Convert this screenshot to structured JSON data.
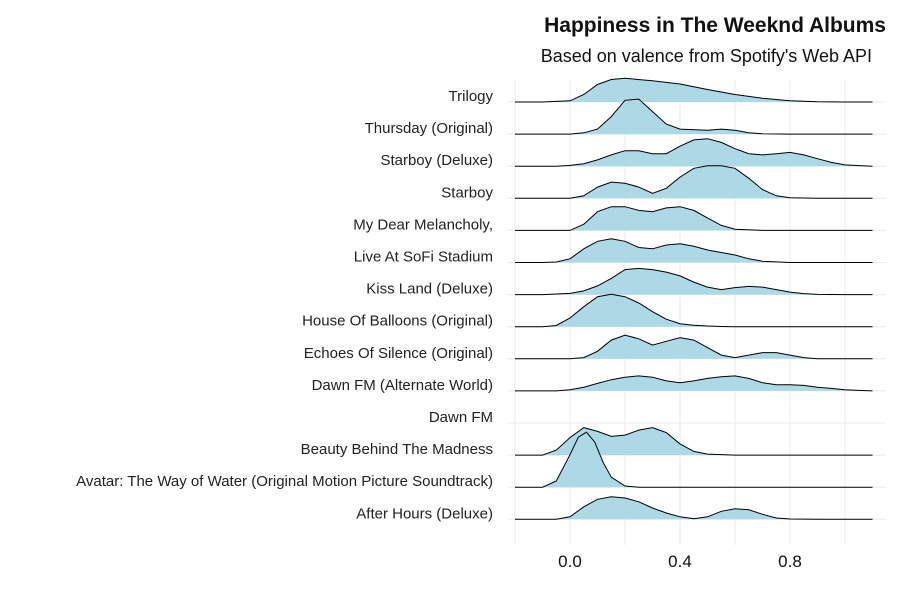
{
  "chart_data": {
    "type": "ridgeline",
    "title": "Happiness in The Weeknd Albums",
    "subtitle": "Based on valence from Spotify's Web API",
    "xlabel": "",
    "ylabel": "",
    "xlim": [
      -0.2,
      1.1
    ],
    "x_ticks": [
      0.0,
      0.4,
      0.8
    ],
    "x_tick_labels": [
      "0.0",
      "0.4",
      "0.8"
    ],
    "grid": true,
    "fill_color": "#add8e6",
    "line_color": "#000000",
    "categories": [
      "Trilogy",
      "Thursday (Original)",
      "Starboy (Deluxe)",
      "Starboy",
      "My Dear Melancholy,",
      "Live At SoFi Stadium",
      "Kiss Land (Deluxe)",
      "House Of Balloons (Original)",
      "Echoes Of Silence (Original)",
      "Dawn FM (Alternate World)",
      "Dawn FM",
      "Beauty Behind The Madness",
      "Avatar: The Way of Water (Original Motion Picture Soundtrack)",
      "After Hours (Deluxe)"
    ],
    "series": [
      {
        "name": "Trilogy",
        "x": [
          -0.2,
          -0.1,
          0.0,
          0.05,
          0.1,
          0.15,
          0.2,
          0.3,
          0.4,
          0.5,
          0.6,
          0.7,
          0.8,
          0.9,
          1.0,
          1.1
        ],
        "y": [
          0,
          0,
          0.05,
          0.3,
          0.7,
          0.9,
          0.95,
          0.85,
          0.72,
          0.5,
          0.3,
          0.15,
          0.05,
          0.01,
          0,
          0
        ]
      },
      {
        "name": "Thursday (Original)",
        "x": [
          -0.2,
          0.0,
          0.05,
          0.1,
          0.15,
          0.2,
          0.25,
          0.3,
          0.35,
          0.4,
          0.5,
          0.55,
          0.6,
          0.65,
          0.7,
          0.8,
          1.1
        ],
        "y": [
          0,
          0,
          0.05,
          0.2,
          0.7,
          1.35,
          1.4,
          0.9,
          0.4,
          0.2,
          0.15,
          0.2,
          0.15,
          0.05,
          0.01,
          0,
          0
        ]
      },
      {
        "name": "Starboy (Deluxe)",
        "x": [
          -0.2,
          -0.05,
          0.0,
          0.05,
          0.1,
          0.15,
          0.2,
          0.25,
          0.3,
          0.35,
          0.4,
          0.45,
          0.5,
          0.55,
          0.6,
          0.65,
          0.7,
          0.75,
          0.8,
          0.85,
          0.9,
          0.95,
          1.0,
          1.1
        ],
        "y": [
          0,
          0,
          0.03,
          0.1,
          0.25,
          0.45,
          0.62,
          0.62,
          0.5,
          0.5,
          0.8,
          1.05,
          1.1,
          0.95,
          0.7,
          0.5,
          0.45,
          0.5,
          0.55,
          0.45,
          0.3,
          0.15,
          0.05,
          0
        ]
      },
      {
        "name": "Starboy",
        "x": [
          -0.2,
          0.0,
          0.05,
          0.1,
          0.15,
          0.2,
          0.25,
          0.3,
          0.35,
          0.4,
          0.45,
          0.5,
          0.55,
          0.6,
          0.65,
          0.7,
          0.75,
          0.8,
          0.9,
          1.1
        ],
        "y": [
          0,
          0,
          0.1,
          0.45,
          0.65,
          0.6,
          0.45,
          0.2,
          0.4,
          0.85,
          1.2,
          1.3,
          1.3,
          1.2,
          0.8,
          0.35,
          0.1,
          0.02,
          0,
          0
        ]
      },
      {
        "name": "My Dear Melancholy,",
        "x": [
          -0.2,
          0.0,
          0.05,
          0.1,
          0.15,
          0.2,
          0.25,
          0.3,
          0.35,
          0.4,
          0.45,
          0.5,
          0.55,
          0.6,
          0.7,
          1.1
        ],
        "y": [
          0,
          0,
          0.25,
          0.75,
          0.95,
          0.95,
          0.8,
          0.75,
          0.9,
          0.95,
          0.8,
          0.5,
          0.2,
          0.05,
          0,
          0
        ]
      },
      {
        "name": "Live At SoFi Stadium",
        "x": [
          -0.2,
          -0.1,
          -0.05,
          0.0,
          0.05,
          0.1,
          0.15,
          0.2,
          0.25,
          0.3,
          0.35,
          0.4,
          0.45,
          0.5,
          0.55,
          0.6,
          0.65,
          0.7,
          0.8,
          1.1
        ],
        "y": [
          0,
          0,
          0.02,
          0.15,
          0.55,
          0.85,
          0.95,
          0.85,
          0.6,
          0.55,
          0.7,
          0.75,
          0.65,
          0.5,
          0.4,
          0.3,
          0.15,
          0.05,
          0,
          0
        ]
      },
      {
        "name": "Kiss Land (Deluxe)",
        "x": [
          -0.2,
          -0.1,
          0.0,
          0.05,
          0.1,
          0.15,
          0.2,
          0.25,
          0.3,
          0.35,
          0.4,
          0.45,
          0.5,
          0.55,
          0.6,
          0.65,
          0.7,
          0.75,
          0.8,
          0.85,
          0.9,
          1.0,
          1.1
        ],
        "y": [
          0,
          0,
          0.05,
          0.15,
          0.35,
          0.65,
          1.0,
          1.05,
          1.0,
          0.9,
          0.75,
          0.5,
          0.3,
          0.2,
          0.28,
          0.33,
          0.3,
          0.2,
          0.1,
          0.04,
          0.01,
          0,
          0
        ]
      },
      {
        "name": "House Of Balloons (Original)",
        "x": [
          -0.2,
          -0.1,
          -0.05,
          0.0,
          0.05,
          0.1,
          0.15,
          0.2,
          0.25,
          0.3,
          0.35,
          0.4,
          0.45,
          0.5,
          0.55,
          0.6,
          0.7,
          1.1
        ],
        "y": [
          0,
          0,
          0.05,
          0.35,
          0.8,
          1.2,
          1.3,
          1.2,
          0.95,
          0.6,
          0.3,
          0.12,
          0.06,
          0.03,
          0.01,
          0,
          0,
          0
        ]
      },
      {
        "name": "Echoes Of Silence (Original)",
        "x": [
          -0.2,
          0.0,
          0.05,
          0.1,
          0.15,
          0.2,
          0.25,
          0.3,
          0.35,
          0.4,
          0.45,
          0.5,
          0.55,
          0.6,
          0.65,
          0.7,
          0.75,
          0.8,
          0.85,
          0.9,
          1.1
        ],
        "y": [
          0,
          0,
          0.05,
          0.3,
          0.75,
          0.95,
          0.8,
          0.55,
          0.7,
          0.85,
          0.75,
          0.45,
          0.15,
          0.05,
          0.15,
          0.25,
          0.25,
          0.15,
          0.05,
          0,
          0
        ]
      },
      {
        "name": "Dawn FM (Alternate World)",
        "x": [
          -0.2,
          -0.05,
          0.0,
          0.05,
          0.1,
          0.15,
          0.2,
          0.25,
          0.3,
          0.35,
          0.4,
          0.45,
          0.5,
          0.55,
          0.6,
          0.65,
          0.7,
          0.75,
          0.8,
          0.85,
          0.9,
          0.95,
          1.0,
          1.05,
          1.1
        ],
        "y": [
          0,
          0,
          0.05,
          0.15,
          0.3,
          0.45,
          0.55,
          0.6,
          0.55,
          0.4,
          0.33,
          0.4,
          0.5,
          0.57,
          0.6,
          0.5,
          0.33,
          0.25,
          0.25,
          0.22,
          0.15,
          0.1,
          0.05,
          0.02,
          0
        ]
      },
      {
        "name": "Dawn FM",
        "x": [],
        "y": []
      },
      {
        "name": "Beauty Behind The Madness",
        "x": [
          -0.2,
          -0.1,
          -0.05,
          0.0,
          0.05,
          0.1,
          0.15,
          0.2,
          0.25,
          0.3,
          0.35,
          0.4,
          0.45,
          0.5,
          0.6,
          1.1
        ],
        "y": [
          0,
          0,
          0.2,
          0.7,
          1.1,
          0.95,
          0.75,
          0.8,
          1.0,
          1.1,
          0.9,
          0.45,
          0.15,
          0.04,
          0,
          0
        ]
      },
      {
        "name": "Avatar: The Way of Water (Original Motion Picture Soundtrack)",
        "x": [
          -0.2,
          -0.1,
          -0.05,
          0.0,
          0.03,
          0.06,
          0.09,
          0.12,
          0.15,
          0.2,
          0.25,
          0.3,
          1.1
        ],
        "y": [
          0,
          0,
          0.25,
          1.3,
          2.0,
          2.2,
          1.8,
          1.0,
          0.4,
          0.05,
          0,
          0,
          0
        ]
      },
      {
        "name": "After Hours (Deluxe)",
        "x": [
          -0.2,
          -0.05,
          0.0,
          0.05,
          0.1,
          0.15,
          0.2,
          0.25,
          0.3,
          0.35,
          0.4,
          0.45,
          0.5,
          0.55,
          0.6,
          0.65,
          0.7,
          0.75,
          0.8,
          0.9,
          1.1
        ],
        "y": [
          0,
          0,
          0.1,
          0.5,
          0.8,
          0.9,
          0.85,
          0.7,
          0.45,
          0.25,
          0.1,
          0.02,
          0.1,
          0.32,
          0.42,
          0.38,
          0.2,
          0.05,
          0.01,
          0,
          0
        ]
      }
    ]
  }
}
